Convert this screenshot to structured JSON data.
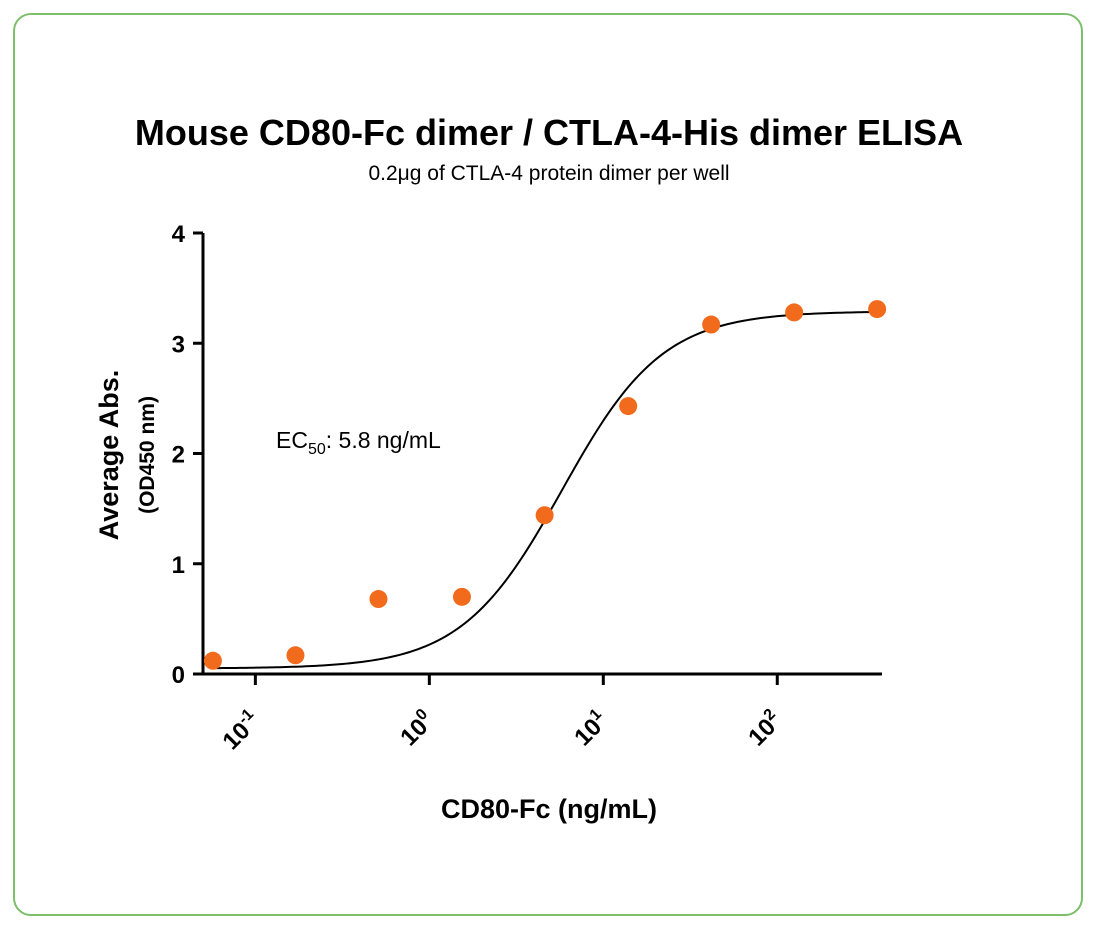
{
  "chart_data": {
    "type": "scatter",
    "title": "Mouse CD80-Fc dimer / CTLA-4-His dimer ELISA",
    "subtitle": "0.2μg of CTLA-4 protein dimer per well",
    "xlabel": "CD80-Fc (ng/mL)",
    "ylabel": "Average Abs.",
    "ylabel_sub": "(OD450 nm)",
    "x_scale": "log",
    "xlim": [
      0.05,
      400
    ],
    "ylim": [
      0,
      4
    ],
    "x_ticks": [
      {
        "value": 0.1,
        "base": "10",
        "exp": "-1"
      },
      {
        "value": 1,
        "base": "10",
        "exp": "0"
      },
      {
        "value": 10,
        "base": "10",
        "exp": "1"
      },
      {
        "value": 100,
        "base": "10",
        "exp": "2"
      }
    ],
    "y_ticks": [
      0,
      1,
      2,
      3,
      4
    ],
    "series": [
      {
        "color": "#f26a1b",
        "points": [
          {
            "x": 0.057,
            "y": 0.12
          },
          {
            "x": 0.17,
            "y": 0.17
          },
          {
            "x": 0.51,
            "y": 0.68
          },
          {
            "x": 1.54,
            "y": 0.7
          },
          {
            "x": 4.6,
            "y": 1.44
          },
          {
            "x": 13.9,
            "y": 2.43
          },
          {
            "x": 41.7,
            "y": 3.17
          },
          {
            "x": 125,
            "y": 3.28
          },
          {
            "x": 375,
            "y": 3.31
          }
        ]
      }
    ],
    "fit_curve": {
      "model": "4PL",
      "bottom": 0.05,
      "top": 3.29,
      "ec50": 5.8,
      "hill": 1.5,
      "color": "#000000"
    },
    "annotation": {
      "prefix": "EC",
      "subscript": "50",
      "suffix": ": 5.8 ng/mL"
    },
    "grid": false,
    "legend": "none"
  },
  "colors": {
    "border": "#7dbf6a",
    "marker": "#f26a1b",
    "axis": "#000000"
  }
}
